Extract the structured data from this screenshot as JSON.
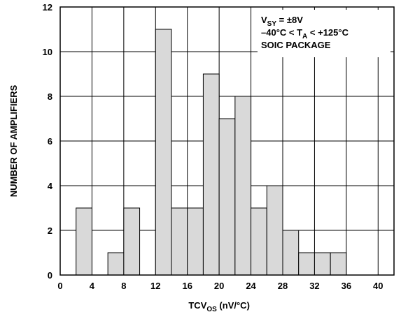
{
  "chart_data": {
    "type": "bar",
    "subtype": "histogram",
    "bin_width": 2,
    "x": [
      3,
      7,
      9,
      13,
      15,
      17,
      19,
      21,
      23,
      25,
      27,
      29,
      31,
      33,
      35
    ],
    "values": [
      3,
      1,
      3,
      11,
      3,
      3,
      9,
      7,
      8,
      3,
      4,
      2,
      1,
      1,
      1
    ],
    "xlim": [
      0,
      42
    ],
    "ylim": [
      0,
      12
    ],
    "xticks": [
      "0",
      "4",
      "8",
      "12",
      "16",
      "20",
      "24",
      "28",
      "32",
      "36",
      "40"
    ],
    "yticks": [
      "0",
      "2",
      "4",
      "6",
      "8",
      "10",
      "12"
    ],
    "xlabel": {
      "main": "TCV",
      "sub": "OS",
      "rest": " (nV/°C)"
    },
    "ylabel": "NUMBER OF AMPLIFIERS",
    "grid": true,
    "bar_color": "#d9d9d9",
    "annotations": [
      {
        "main": "V",
        "sub": "SY",
        "rest": " = ±8V"
      },
      {
        "main": "–40°C < T",
        "sub": "A",
        "rest": " < +125°C"
      },
      {
        "main": "SOIC PACKAGE",
        "sub": "",
        "rest": ""
      }
    ]
  }
}
